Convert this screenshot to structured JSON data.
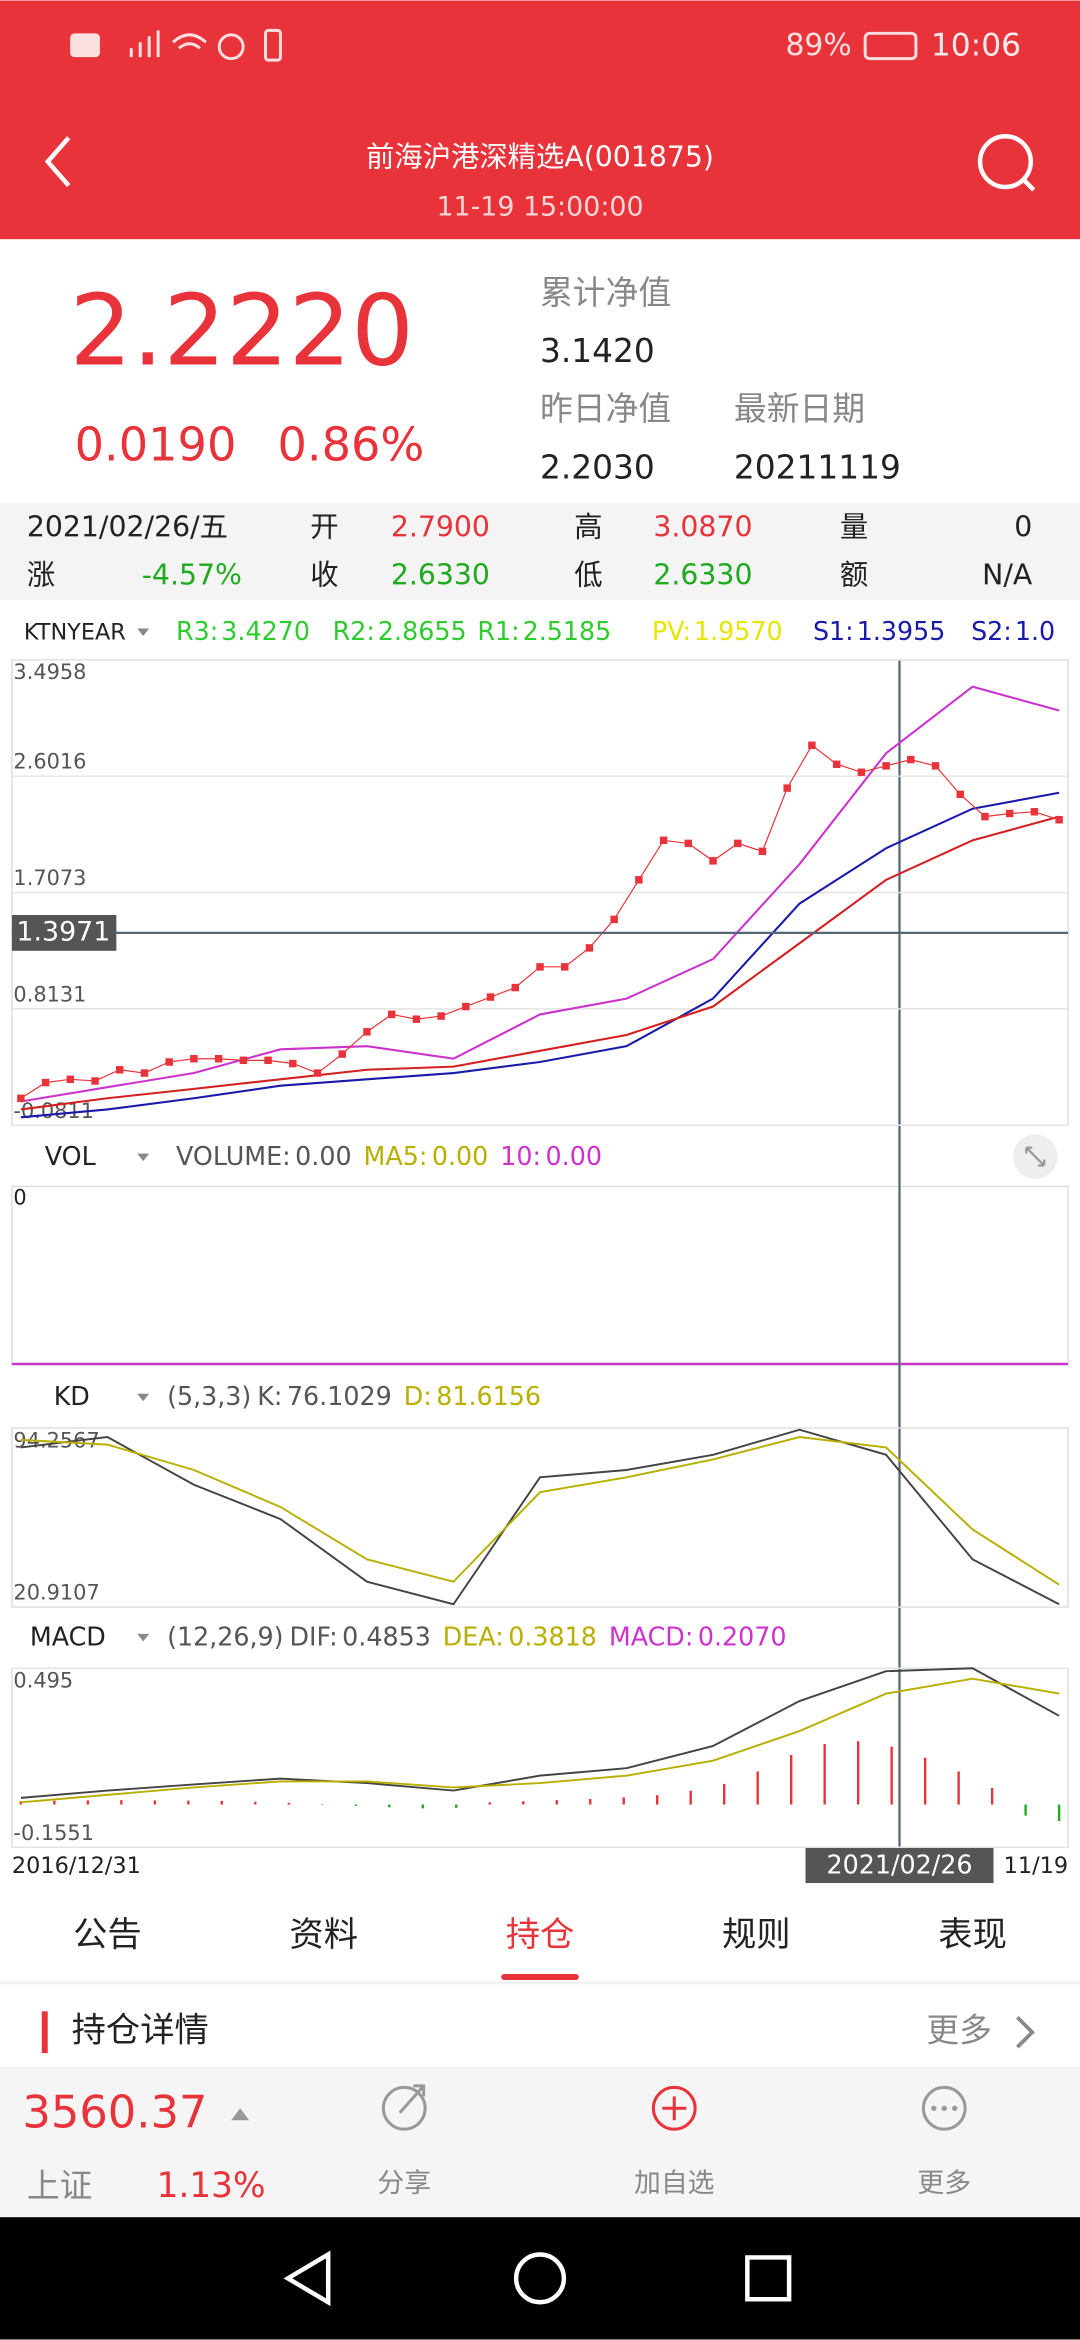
{
  "status_bar": {
    "battery": "89%",
    "time": "10:06"
  },
  "header": {
    "title": "前海沪港深精选A(001875)",
    "subtitle": "11-19 15:00:00"
  },
  "summary": {
    "nav": "2.2220",
    "change": "0.0190",
    "change_pct": "0.86%",
    "cum_label": "累计净值",
    "cum_value": "3.1420",
    "prev_label": "昨日净值",
    "prev_value": "2.2030",
    "date_label": "最新日期",
    "date_value": "20211119"
  },
  "quote": {
    "date": "2021/02/26/五",
    "rise_label": "涨",
    "rise": "-4.57%",
    "open_label": "开",
    "open": "2.7900",
    "close_label": "收",
    "close": "2.6330",
    "high_label": "高",
    "high": "3.0870",
    "low_label": "低",
    "low": "2.6330",
    "volume_label": "量",
    "volume": "0",
    "amount_label": "额",
    "amount": "N/A"
  },
  "main_chart": {
    "indicator": "KTNYEAR",
    "levels": [
      {
        "label": "R3:",
        "value": "3.4270",
        "color": "#2ecc2e"
      },
      {
        "label": "R2:",
        "value": "2.8655",
        "color": "#2ecc2e"
      },
      {
        "label": "R1:",
        "value": "2.5185",
        "color": "#2ecc2e"
      },
      {
        "label": "PV:",
        "value": "1.9570",
        "color": "#e6e600"
      },
      {
        "label": "S1:",
        "value": "1.3955",
        "color": "#1a1aaa"
      },
      {
        "label": "S2:",
        "value": "1.0",
        "color": "#1a1aaa"
      }
    ],
    "ylim": [
      -0.0811,
      3.4958
    ],
    "yticks": [
      -0.0811,
      0.8131,
      1.7073,
      2.6016,
      3.4958
    ],
    "crosshair": 1.3971,
    "price": {
      "color": "#e8333a",
      "values": [
        0.126,
        0.247,
        0.272,
        0.259,
        0.345,
        0.32,
        0.405,
        0.43,
        0.43,
        0.418,
        0.418,
        0.393,
        0.32,
        0.466,
        0.637,
        0.771,
        0.734,
        0.758,
        0.831,
        0.904,
        0.977,
        1.136,
        1.136,
        1.282,
        1.501,
        1.805,
        2.109,
        2.085,
        1.951,
        2.085,
        2.024,
        2.51,
        2.839,
        2.693,
        2.632,
        2.681,
        2.729,
        2.681,
        2.462,
        2.291,
        2.315,
        2.328,
        2.267
      ]
    },
    "series": [
      {
        "color": "#cc33cc",
        "values": [
          0.101,
          0.211,
          0.32,
          0.503,
          0.527,
          0.43,
          0.771,
          0.892,
          1.196,
          1.926,
          2.778,
          3.289,
          3.106
        ]
      },
      {
        "color": "#1a1aaa",
        "values": [
          -0.02,
          0.04,
          0.126,
          0.223,
          0.272,
          0.32,
          0.405,
          0.527,
          0.892,
          1.622,
          2.048,
          2.352,
          2.474
        ]
      },
      {
        "color": "#d42020",
        "values": [
          0.04,
          0.126,
          0.199,
          0.272,
          0.345,
          0.369,
          0.491,
          0.612,
          0.831,
          1.318,
          1.805,
          2.109,
          2.291
        ]
      }
    ]
  },
  "vol_chart": {
    "name": "VOL",
    "volume_label": "VOLUME:",
    "volume": "0.00",
    "ma5_label": "MA5:",
    "ma5": "0.00",
    "ma10_label": "10:",
    "ma10": "0.00",
    "ytick_label": "0"
  },
  "kd_chart": {
    "name": "KD",
    "params": "(5,3,3)",
    "k_label": "K:",
    "k": "76.1029",
    "d_label": "D:",
    "d": "81.6156",
    "ylim": [
      20.9107,
      94.2567
    ],
    "yticks": [
      20.9107,
      94.2567
    ],
    "series": [
      {
        "color": "#444444",
        "values": [
          86.3,
          90.6,
          71.0,
          57.0,
          31.3,
          22.1,
          74.1,
          77.1,
          83.3,
          93.6,
          83.3,
          40.5,
          22.1
        ]
      },
      {
        "color": "#b8b000",
        "values": [
          89.4,
          87.5,
          77.1,
          61.9,
          40.5,
          31.3,
          68.0,
          74.1,
          81.4,
          90.6,
          86.3,
          52.7,
          30.1
        ]
      }
    ]
  },
  "macd_chart": {
    "name": "MACD",
    "params": "(12,26,9)",
    "dif_label": "DIF:",
    "dif": "0.4853",
    "dea_label": "DEA:",
    "dea": "0.3818",
    "macd_label": "MACD:",
    "macd": "0.2070",
    "ylim": [
      -0.1551,
      0.495
    ],
    "yticks": [
      -0.1551,
      0.495
    ],
    "series": [
      {
        "color": "#444444",
        "values": [
          0.024,
          0.051,
          0.073,
          0.094,
          0.078,
          0.051,
          0.105,
          0.132,
          0.213,
          0.376,
          0.484,
          0.495,
          0.322
        ]
      },
      {
        "color": "#b8b000",
        "values": [
          0.008,
          0.035,
          0.062,
          0.084,
          0.084,
          0.062,
          0.078,
          0.105,
          0.159,
          0.267,
          0.403,
          0.457,
          0.403
        ]
      }
    ],
    "bars": [
      0.012,
      0.014,
      0.015,
      0.016,
      0.015,
      0.014,
      0.013,
      0.01,
      0.006,
      0.002,
      -0.005,
      -0.01,
      -0.014,
      -0.012,
      0.008,
      0.012,
      0.016,
      0.02,
      0.026,
      0.034,
      0.05,
      0.075,
      0.12,
      0.18,
      0.22,
      0.23,
      0.21,
      0.17,
      0.12,
      0.06,
      -0.04,
      -0.06
    ],
    "x_start": "2016/12/31",
    "x_cursor": "2021/02/26",
    "x_end": "11/19"
  },
  "tabs": [
    "公告",
    "资料",
    "持仓",
    "规则",
    "表现"
  ],
  "section": {
    "title": "持仓详情",
    "more": "更多"
  },
  "bottom_bar": {
    "index_value": "3560.37",
    "index_name": "上证",
    "index_change": "1.13%",
    "actions": [
      "分享",
      "加自选",
      "更多"
    ]
  }
}
